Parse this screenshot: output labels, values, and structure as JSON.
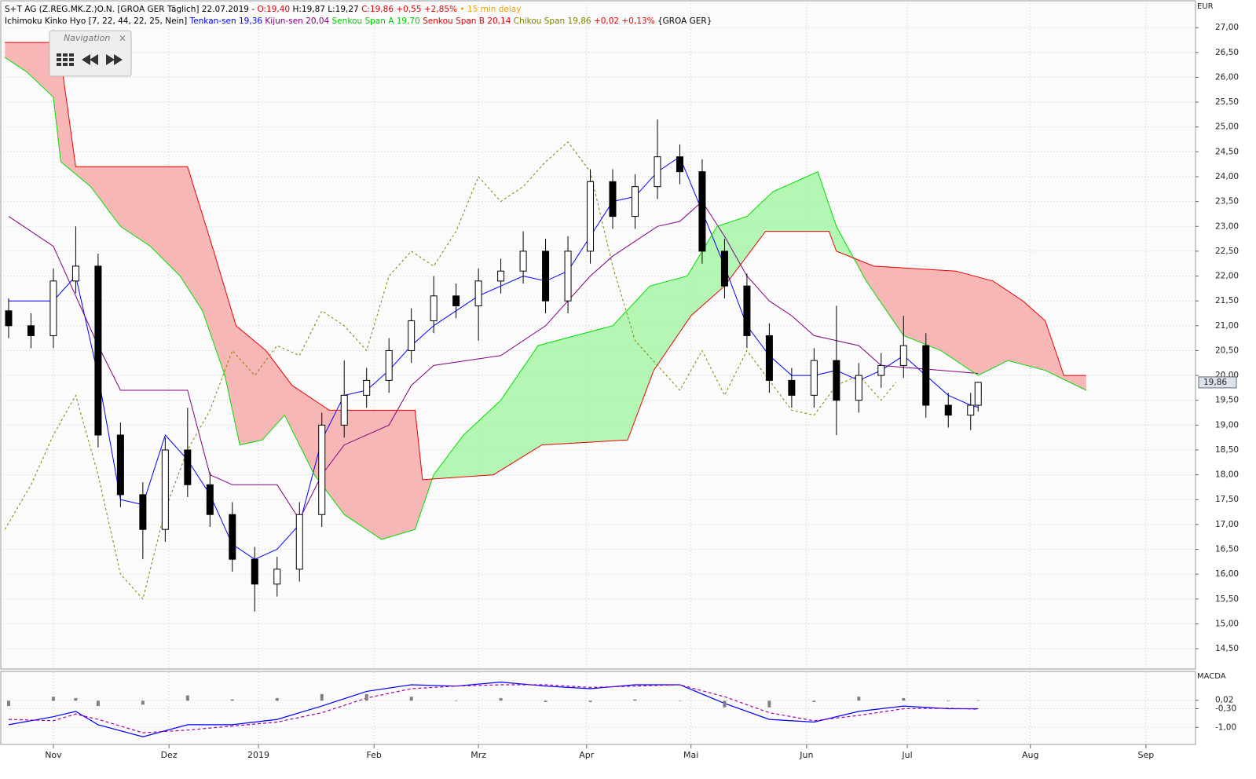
{
  "header": {
    "line1": [
      {
        "text": "S+T AG (Z.REG.MK.Z.)O.N. [GROA GER Täglich] 22.07.2019 - ",
        "color": "#000000"
      },
      {
        "text": "O:19,40 ",
        "color": "#e00000"
      },
      {
        "text": "H:19,87 L:19,27 ",
        "color": "#000000"
      },
      {
        "text": "C:19,86 +0,55 +2,85% ",
        "color": "#e00000"
      },
      {
        "text": "• 15 min delay",
        "color": "#f0a000"
      }
    ],
    "line2": [
      {
        "text": "Ichimoku Kinko Hyo [7, 22, 44, 22, 25, Nein] ",
        "color": "#000000"
      },
      {
        "text": "Tenkan-sen 19,36 ",
        "color": "#0000ff"
      },
      {
        "text": "Kijun-sen 20,04 ",
        "color": "#800080"
      },
      {
        "text": "Senkou Span A 19,70 ",
        "color": "#00cc00"
      },
      {
        "text": "Senkou Span B 20,14 ",
        "color": "#e00000"
      },
      {
        "text": "Chikou Span 19,86 ",
        "color": "#808000"
      },
      {
        "text": "+0,02 +0,13% ",
        "color": "#e00000"
      },
      {
        "text": "{GROA GER}",
        "color": "#000000"
      }
    ]
  },
  "navigation": {
    "title": "Navigation",
    "close": "×"
  },
  "chart_data": [
    {
      "type": "candlestick",
      "y_unit": "EUR",
      "grid": true,
      "x": [
        -12,
        -6,
        0,
        6,
        12,
        18,
        24,
        30,
        36,
        42,
        48,
        54,
        60,
        66,
        72,
        78,
        84,
        90,
        96,
        102,
        108,
        114,
        120,
        126,
        132,
        138,
        144,
        150,
        156,
        162,
        168,
        174,
        180,
        186,
        192,
        198,
        204,
        210,
        216,
        222,
        228,
        234,
        240,
        246,
        248
      ],
      "open": [
        21.3,
        21.0,
        20.8,
        21.9,
        22.2,
        18.8,
        17.6,
        16.9,
        18.5,
        17.8,
        17.2,
        16.3,
        15.8,
        16.1,
        17.2,
        19.0,
        19.6,
        19.9,
        20.5,
        21.1,
        21.6,
        21.4,
        21.9,
        22.1,
        22.5,
        21.5,
        22.5,
        23.9,
        23.2,
        23.8,
        24.4,
        24.1,
        22.5,
        21.8,
        20.8,
        19.9,
        19.6,
        20.3,
        19.5,
        20.0,
        20.2,
        20.6,
        19.4,
        19.2,
        19.4
      ],
      "high": [
        21.55,
        21.25,
        22.15,
        23.0,
        22.45,
        19.05,
        17.85,
        18.75,
        19.35,
        18.05,
        17.45,
        16.55,
        16.35,
        17.45,
        19.25,
        20.3,
        20.15,
        20.75,
        21.35,
        22.0,
        21.85,
        22.15,
        22.35,
        22.9,
        22.75,
        22.8,
        24.15,
        24.15,
        24.05,
        25.15,
        24.65,
        24.35,
        22.75,
        22.05,
        21.05,
        20.15,
        20.55,
        21.4,
        20.25,
        20.45,
        21.2,
        20.85,
        19.65,
        19.65,
        19.87
      ],
      "low": [
        20.75,
        20.55,
        20.55,
        21.65,
        18.55,
        17.35,
        16.3,
        16.65,
        17.55,
        16.95,
        16.05,
        15.25,
        15.55,
        15.85,
        16.95,
        18.75,
        19.35,
        19.65,
        20.25,
        20.85,
        21.15,
        20.7,
        21.65,
        21.85,
        21.25,
        21.25,
        22.25,
        22.95,
        22.95,
        23.55,
        23.85,
        22.25,
        21.55,
        20.55,
        19.65,
        19.35,
        19.35,
        18.8,
        19.25,
        19.75,
        19.95,
        19.15,
        18.95,
        18.9,
        19.27
      ],
      "close": [
        21.0,
        20.8,
        21.9,
        22.2,
        18.8,
        17.6,
        16.9,
        18.5,
        17.8,
        17.2,
        16.3,
        15.8,
        16.1,
        17.2,
        19.0,
        19.6,
        19.9,
        20.5,
        21.1,
        21.6,
        21.4,
        21.9,
        22.1,
        22.5,
        21.5,
        22.5,
        23.9,
        23.2,
        23.8,
        24.4,
        24.1,
        22.5,
        21.8,
        20.8,
        19.9,
        19.6,
        20.3,
        19.5,
        20.0,
        20.2,
        20.6,
        19.4,
        19.2,
        19.4,
        19.86
      ],
      "series": [
        {
          "name": "Tenkan-sen",
          "color": "#0000ff",
          "x": [
            -12,
            -6,
            0,
            6,
            12,
            18,
            24,
            30,
            36,
            42,
            48,
            54,
            60,
            66,
            72,
            78,
            84,
            90,
            96,
            102,
            108,
            114,
            120,
            126,
            132,
            138,
            144,
            150,
            156,
            162,
            168,
            174,
            180,
            186,
            192,
            198,
            204,
            210,
            216,
            222,
            228,
            234,
            240,
            246,
            248
          ],
          "values": [
            21.5,
            21.5,
            21.5,
            22.0,
            20.0,
            17.5,
            17.4,
            18.8,
            18.3,
            17.6,
            16.6,
            16.3,
            16.5,
            17.0,
            18.7,
            19.6,
            19.7,
            20.1,
            20.6,
            21.0,
            21.3,
            21.6,
            21.8,
            22.0,
            21.9,
            22.1,
            22.8,
            23.5,
            23.6,
            24.1,
            24.4,
            23.3,
            22.2,
            21.0,
            20.4,
            20.0,
            20.0,
            20.1,
            19.9,
            20.1,
            20.4,
            20.0,
            19.6,
            19.4,
            19.36
          ]
        },
        {
          "name": "Kijun-sen",
          "color": "#800080",
          "x": [
            -12,
            0,
            12,
            18,
            36,
            42,
            48,
            60,
            66,
            72,
            78,
            90,
            96,
            102,
            120,
            132,
            144,
            150,
            162,
            168,
            174,
            180,
            186,
            192,
            198,
            204,
            216,
            222,
            248
          ],
          "values": [
            23.2,
            22.6,
            20.6,
            19.7,
            19.7,
            18.0,
            17.8,
            17.8,
            17.1,
            18.0,
            18.6,
            19.0,
            19.8,
            20.2,
            20.4,
            21.0,
            22.0,
            22.4,
            23.0,
            23.1,
            23.5,
            22.8,
            22.0,
            21.5,
            21.2,
            20.8,
            20.6,
            20.2,
            20.04
          ]
        },
        {
          "name": "Senkou Span A",
          "color": "#00dd00",
          "x": [
            -13,
            -7,
            0,
            2,
            10,
            18,
            26,
            34,
            40,
            46,
            50,
            56,
            62,
            70,
            78,
            88,
            97,
            102,
            110,
            120,
            130,
            140,
            150,
            160,
            170,
            178,
            186,
            193,
            205,
            210,
            218,
            228,
            238,
            248,
            256,
            266,
            277
          ],
          "values": [
            26.4,
            26.1,
            25.6,
            24.3,
            23.8,
            23.0,
            22.6,
            22.0,
            21.3,
            20.0,
            18.6,
            18.7,
            19.2,
            18.0,
            17.2,
            16.7,
            16.9,
            18.0,
            18.8,
            19.5,
            20.6,
            20.8,
            21.0,
            21.8,
            22.0,
            23.0,
            23.2,
            23.7,
            24.1,
            23.0,
            21.9,
            20.8,
            20.5,
            20.0,
            20.3,
            20.1,
            19.7
          ]
        },
        {
          "name": "Senkou Span B",
          "color": "#ee0000",
          "x": [
            -13,
            0,
            1,
            6,
            36,
            43,
            49,
            57,
            64,
            74,
            97,
            99,
            118,
            131,
            154,
            161,
            171,
            180,
            191,
            208,
            210,
            220,
            242,
            252,
            260,
            266,
            271,
            277
          ],
          "values": [
            26.7,
            26.7,
            26.9,
            24.2,
            24.2,
            22.5,
            21.0,
            20.5,
            19.8,
            19.3,
            19.3,
            17.9,
            18.0,
            18.6,
            18.7,
            20.1,
            21.2,
            21.8,
            22.9,
            22.9,
            22.5,
            22.2,
            22.1,
            21.9,
            21.5,
            21.1,
            20.0,
            20.0
          ]
        },
        {
          "name": "Chikou Span",
          "color": "#808000",
          "dash": true,
          "x": [
            -13,
            -6,
            0,
            6,
            12,
            18,
            24,
            30,
            36,
            42,
            48,
            54,
            60,
            66,
            72,
            78,
            84,
            90,
            96,
            102,
            108,
            114,
            120,
            126,
            132,
            138,
            144,
            150,
            156,
            162,
            168,
            174,
            180,
            186,
            192,
            198,
            204,
            210,
            216,
            222,
            226
          ],
          "values": [
            16.9,
            17.8,
            18.8,
            19.6,
            18.0,
            16.0,
            15.5,
            17.3,
            18.5,
            19.3,
            20.5,
            20.0,
            20.6,
            20.4,
            21.3,
            21.0,
            20.5,
            22.0,
            22.5,
            22.2,
            22.9,
            24.0,
            23.5,
            23.8,
            24.3,
            24.7,
            24.1,
            22.2,
            20.7,
            20.2,
            19.7,
            20.5,
            19.6,
            20.5,
            19.9,
            19.3,
            19.2,
            19.8,
            20.0,
            19.5,
            19.86
          ]
        }
      ],
      "last_price": {
        "value": 19.86,
        "label": "19,86"
      },
      "xlim": [
        -14.1,
        306.3
      ],
      "ylim": [
        14.09,
        27.54
      ],
      "xticks": [
        {
          "value": 0,
          "label": "Nov"
        },
        {
          "value": 31,
          "label": "Dez"
        },
        {
          "value": 55,
          "label": "2019"
        },
        {
          "value": 86,
          "label": "Feb"
        },
        {
          "value": 114,
          "label": "Mrz"
        },
        {
          "value": 143,
          "label": "Apr"
        },
        {
          "value": 171,
          "label": "Mai"
        },
        {
          "value": 202,
          "label": "Jun"
        },
        {
          "value": 229,
          "label": "Jul"
        },
        {
          "value": 262,
          "label": "Aug"
        },
        {
          "value": 293,
          "label": "Sep"
        }
      ],
      "yticks": [
        {
          "value": 27,
          "label": "27,00"
        },
        {
          "value": 26.5,
          "label": "26,50"
        },
        {
          "value": 26,
          "label": "26,00"
        },
        {
          "value": 25.5,
          "label": "25,50"
        },
        {
          "value": 25,
          "label": "25,00"
        },
        {
          "value": 24.5,
          "label": "24,50"
        },
        {
          "value": 24,
          "label": "24,00"
        },
        {
          "value": 23.5,
          "label": "23,50"
        },
        {
          "value": 23,
          "label": "23,00"
        },
        {
          "value": 22.5,
          "label": "22,50"
        },
        {
          "value": 22,
          "label": "22,00"
        },
        {
          "value": 21.5,
          "label": "21,50"
        },
        {
          "value": 21,
          "label": "21,00"
        },
        {
          "value": 20.5,
          "label": "20,50"
        },
        {
          "value": 20,
          "label": "20,00"
        },
        {
          "value": 19.5,
          "label": "19,50"
        },
        {
          "value": 19,
          "label": "19,00"
        },
        {
          "value": 18.5,
          "label": "18,50"
        },
        {
          "value": 18,
          "label": "18,00"
        },
        {
          "value": 17.5,
          "label": "17,50"
        },
        {
          "value": 17,
          "label": "17,00"
        },
        {
          "value": 16.5,
          "label": "16,50"
        },
        {
          "value": 16,
          "label": "16,00"
        },
        {
          "value": 15.5,
          "label": "15,50"
        },
        {
          "value": 15,
          "label": "15,00"
        },
        {
          "value": 14.5,
          "label": "14,50"
        }
      ]
    },
    {
      "type": "line",
      "title": "MACDA",
      "grid": true,
      "x": [
        -12,
        0,
        6,
        12,
        24,
        36,
        48,
        60,
        72,
        84,
        96,
        108,
        120,
        132,
        144,
        156,
        168,
        180,
        192,
        204,
        216,
        228,
        240,
        248
      ],
      "series": [
        {
          "name": "MACD",
          "color": "#0000ff",
          "values": [
            -0.9,
            -0.6,
            -0.4,
            -0.9,
            -1.35,
            -0.9,
            -0.9,
            -0.7,
            -0.2,
            0.35,
            0.6,
            0.55,
            0.7,
            0.55,
            0.45,
            0.6,
            0.6,
            -0.1,
            -0.7,
            -0.8,
            -0.4,
            -0.2,
            -0.3,
            -0.3
          ]
        },
        {
          "name": "Signal",
          "color": "#a000a0",
          "dash": true,
          "values": [
            -0.7,
            -0.75,
            -0.5,
            -0.7,
            -1.2,
            -1.1,
            -0.95,
            -0.8,
            -0.45,
            0.1,
            0.45,
            0.55,
            0.6,
            0.6,
            0.5,
            0.55,
            0.6,
            0.15,
            -0.45,
            -0.75,
            -0.55,
            -0.3,
            -0.28,
            -0.32
          ]
        },
        {
          "name": "Histogram",
          "color": "#808080",
          "bars": true,
          "values": [
            -0.2,
            0.15,
            0.1,
            -0.2,
            -0.15,
            0.2,
            0.05,
            0.1,
            0.25,
            0.25,
            0.15,
            0,
            0.1,
            -0.05,
            -0.05,
            0.05,
            0,
            -0.25,
            -0.25,
            -0.05,
            0.15,
            0.1,
            -0.02,
            0.02
          ]
        }
      ],
      "xlim": [
        -14.1,
        306.3
      ],
      "ylim": [
        -1.64,
        1.07
      ],
      "yticks": [
        {
          "value": 0.02,
          "label": "0,02"
        },
        {
          "value": -0.3,
          "label": "-0,30"
        },
        {
          "value": -1,
          "label": "-1,00"
        }
      ]
    }
  ]
}
